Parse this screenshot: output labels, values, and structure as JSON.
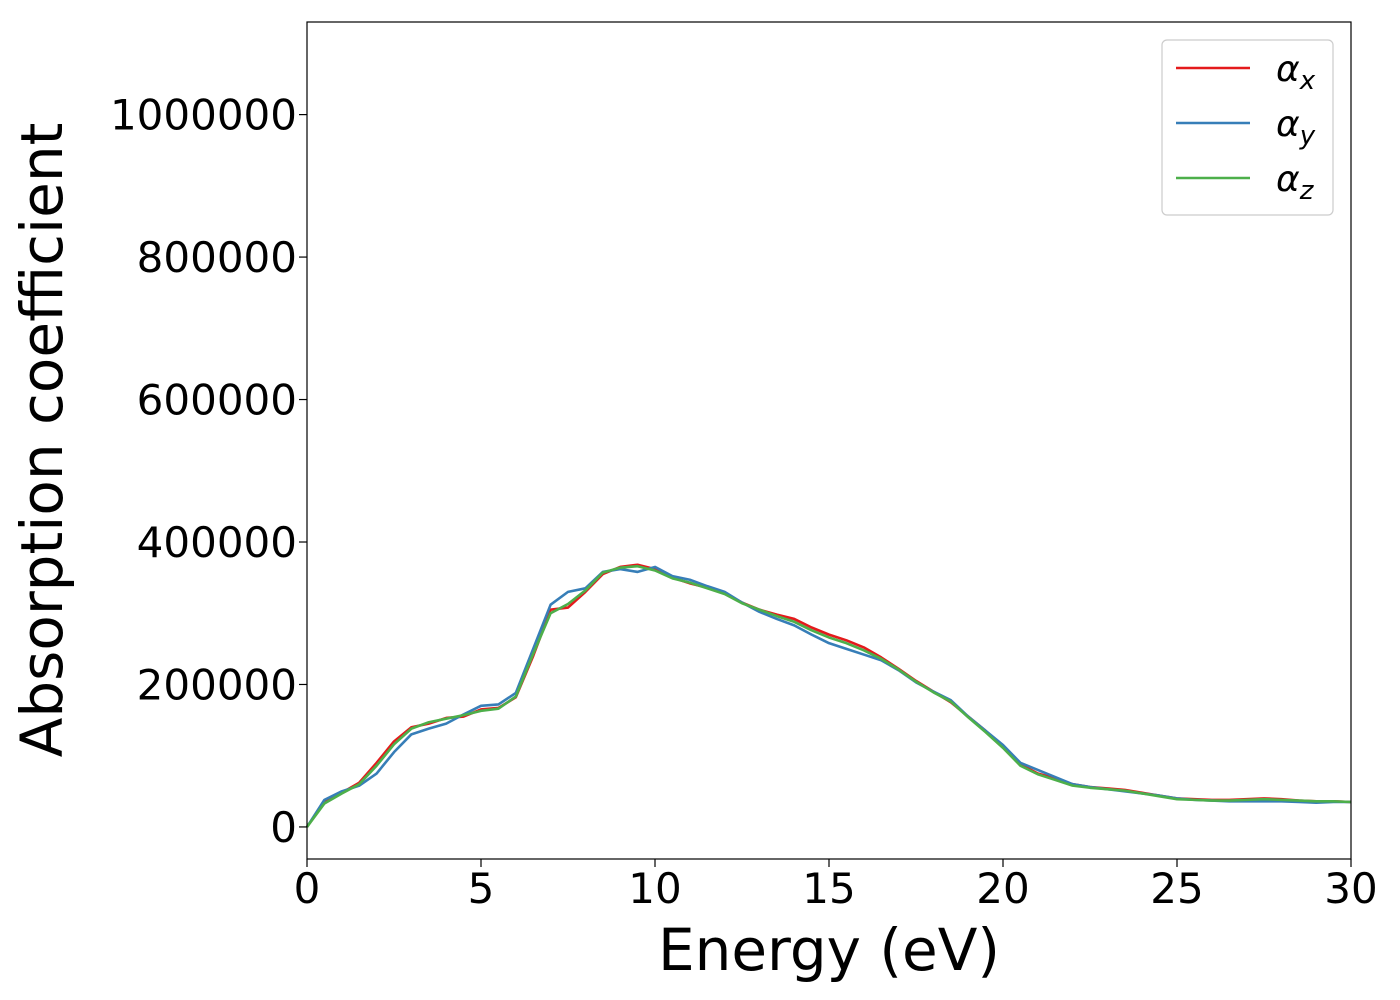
{
  "chart_data": {
    "type": "line",
    "title": "",
    "xlabel": "Energy (eV)",
    "ylabel": "Absorption coefficient",
    "xlim": [
      0,
      30
    ],
    "ylim": [
      -45000,
      1130000
    ],
    "xticks": [
      0,
      5,
      10,
      15,
      20,
      25,
      30
    ],
    "xtick_labels": [
      "0",
      "5",
      "10",
      "15",
      "20",
      "25",
      "30"
    ],
    "yticks": [
      0,
      200000,
      400000,
      600000,
      800000,
      1000000
    ],
    "ytick_labels": [
      "0",
      "200000",
      "400000",
      "600000",
      "800000",
      "1000000"
    ],
    "grid": false,
    "legend_position": "top-right",
    "series": [
      {
        "name": "α_x",
        "legend_symbol": "α",
        "legend_subscript": "x",
        "color": "#e41a1c",
        "x": [
          0,
          0.5,
          1,
          1.5,
          2,
          2.5,
          3,
          3.5,
          4,
          4.5,
          5,
          5.5,
          6,
          6.5,
          7,
          7.5,
          8,
          8.5,
          9,
          9.5,
          10,
          10.5,
          11,
          11.5,
          12,
          12.5,
          13,
          13.5,
          14,
          14.5,
          15,
          15.5,
          16,
          16.5,
          17,
          17.5,
          18,
          18.5,
          19,
          19.5,
          20,
          20.5,
          21,
          21.5,
          22,
          22.5,
          23,
          23.5,
          24,
          24.5,
          25,
          25.5,
          26,
          26.5,
          27,
          27.5,
          28,
          28.5,
          29,
          29.5,
          30
        ],
        "y": [
          0,
          35000,
          48000,
          62000,
          90000,
          120000,
          140000,
          145000,
          153000,
          155000,
          165000,
          167000,
          182000,
          240000,
          305000,
          308000,
          330000,
          355000,
          365000,
          368000,
          362000,
          350000,
          342000,
          336000,
          328000,
          315000,
          305000,
          298000,
          292000,
          280000,
          270000,
          262000,
          252000,
          238000,
          222000,
          205000,
          190000,
          175000,
          155000,
          135000,
          112000,
          88000,
          75000,
          68000,
          60000,
          56000,
          54000,
          52000,
          48000,
          44000,
          40000,
          39000,
          38000,
          38000,
          39000,
          40000,
          39000,
          37000,
          36000,
          36000,
          35000
        ]
      },
      {
        "name": "α_y",
        "legend_symbol": "α",
        "legend_subscript": "y",
        "color": "#377eb8",
        "x": [
          0,
          0.5,
          1,
          1.5,
          2,
          2.5,
          3,
          3.5,
          4,
          4.5,
          5,
          5.5,
          6,
          6.5,
          7,
          7.5,
          8,
          8.5,
          9,
          9.5,
          10,
          10.5,
          11,
          11.5,
          12,
          12.5,
          13,
          13.5,
          14,
          14.5,
          15,
          15.5,
          16,
          16.5,
          17,
          17.5,
          18,
          18.5,
          19,
          19.5,
          20,
          20.5,
          21,
          21.5,
          22,
          22.5,
          23,
          23.5,
          24,
          24.5,
          25,
          25.5,
          26,
          26.5,
          27,
          27.5,
          28,
          28.5,
          29,
          29.5,
          30
        ],
        "y": [
          0,
          38000,
          50000,
          58000,
          75000,
          105000,
          130000,
          138000,
          145000,
          158000,
          170000,
          172000,
          188000,
          250000,
          312000,
          330000,
          335000,
          358000,
          362000,
          358000,
          365000,
          352000,
          347000,
          338000,
          330000,
          315000,
          302000,
          292000,
          283000,
          270000,
          258000,
          250000,
          242000,
          234000,
          220000,
          203000,
          190000,
          178000,
          155000,
          135000,
          115000,
          90000,
          80000,
          70000,
          60000,
          56000,
          53000,
          50000,
          47000,
          44000,
          40000,
          38000,
          37000,
          36000,
          36000,
          36000,
          36000,
          35000,
          34000,
          35000,
          35000
        ]
      },
      {
        "name": "α_z",
        "legend_symbol": "α",
        "legend_subscript": "z",
        "color": "#4daf4a",
        "x": [
          0,
          0.5,
          1,
          1.5,
          2,
          2.5,
          3,
          3.5,
          4,
          4.5,
          5,
          5.5,
          6,
          6.5,
          7,
          7.5,
          8,
          8.5,
          9,
          9.5,
          10,
          10.5,
          11,
          11.5,
          12,
          12.5,
          13,
          13.5,
          14,
          14.5,
          15,
          15.5,
          16,
          16.5,
          17,
          17.5,
          18,
          18.5,
          19,
          19.5,
          20,
          20.5,
          21,
          21.5,
          22,
          22.5,
          23,
          23.5,
          24,
          24.5,
          25,
          25.5,
          26,
          26.5,
          27,
          27.5,
          28,
          28.5,
          29,
          29.5,
          30
        ],
        "y": [
          0,
          33000,
          47000,
          60000,
          86000,
          116000,
          138000,
          147000,
          152000,
          157000,
          163000,
          166000,
          183000,
          243000,
          300000,
          313000,
          332000,
          357000,
          364000,
          366000,
          360000,
          349000,
          343000,
          335000,
          327000,
          314000,
          305000,
          296000,
          288000,
          276000,
          266000,
          258000,
          248000,
          236000,
          221000,
          204000,
          189000,
          176000,
          154000,
          133000,
          111000,
          86000,
          74000,
          66000,
          58000,
          55000,
          53000,
          51000,
          47000,
          43000,
          39000,
          38000,
          37000,
          37000,
          38000,
          39000,
          38000,
          37000,
          36000,
          36000,
          35000
        ]
      }
    ]
  }
}
